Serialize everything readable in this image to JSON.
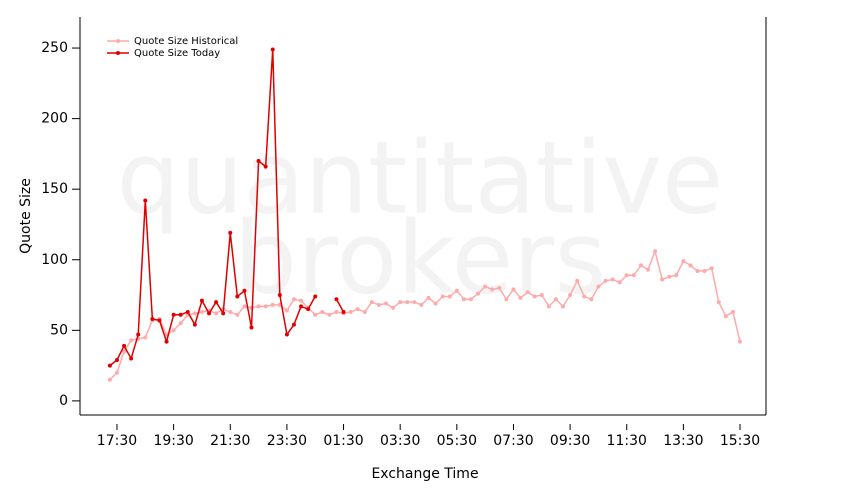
{
  "chart_data": {
    "type": "line",
    "watermark": [
      "quantitative",
      "brokers"
    ],
    "x_label": "Exchange Time",
    "y_label": "Quote Size",
    "categories": [
      null,
      "17:30",
      null,
      null,
      null,
      null,
      null,
      null,
      null,
      "19:30",
      null,
      null,
      null,
      null,
      null,
      null,
      null,
      "21:30",
      null,
      null,
      null,
      null,
      null,
      null,
      null,
      "23:30",
      null,
      null,
      null,
      null,
      null,
      null,
      null,
      "01:30",
      null,
      null,
      null,
      null,
      null,
      null,
      null,
      "03:30",
      null,
      null,
      null,
      null,
      null,
      null,
      null,
      "05:30",
      null,
      null,
      null,
      null,
      null,
      null,
      null,
      "07:30",
      null,
      null,
      null,
      null,
      null,
      null,
      null,
      "09:30",
      null,
      null,
      null,
      null,
      null,
      null,
      null,
      "11:30",
      null,
      null,
      null,
      null,
      null,
      null,
      null,
      "13:30",
      null,
      null,
      null,
      null,
      null,
      null,
      null,
      "15:30"
    ],
    "series": [
      {
        "name": "Quote Size Historical",
        "color": "#ffaaaa",
        "values": [
          15,
          20,
          35,
          43,
          44,
          45,
          57,
          58,
          47,
          50,
          55,
          61,
          62,
          63,
          64,
          62,
          65,
          63,
          61,
          67,
          66,
          67,
          67,
          68,
          68,
          64,
          72,
          71,
          66,
          61,
          63,
          61,
          63,
          62,
          63,
          65,
          63,
          70,
          68,
          69,
          66,
          70,
          70,
          70,
          68,
          73,
          69,
          74,
          74,
          78,
          72,
          72,
          76,
          81,
          79,
          80,
          72,
          79,
          73,
          77,
          74,
          75,
          67,
          72,
          67,
          75,
          85,
          74,
          72,
          81,
          85,
          86,
          84,
          89,
          89,
          96,
          93,
          106,
          86,
          88,
          89,
          99,
          96,
          92,
          92,
          94,
          70,
          60,
          63,
          42
        ]
      },
      {
        "name": "Quote Size Today",
        "color": "#e00000",
        "values": [
          25,
          29,
          39,
          30,
          47,
          142,
          58,
          57,
          42,
          61,
          61,
          63,
          54,
          71,
          62,
          70,
          62,
          119,
          74,
          78,
          52,
          170,
          166,
          249,
          75,
          47,
          54,
          67,
          65,
          74,
          null,
          null,
          72,
          63,
          null,
          null,
          null,
          null,
          null,
          null,
          null,
          null,
          null,
          null,
          null,
          null,
          null,
          null,
          null,
          null,
          null,
          null,
          null,
          null,
          null,
          null,
          null,
          null,
          null,
          null,
          null,
          null,
          null,
          null,
          null,
          null,
          null,
          null,
          null,
          null,
          null,
          null,
          null,
          null,
          null,
          null,
          null,
          null,
          null,
          null,
          null,
          null,
          null,
          null,
          null,
          null,
          null,
          null,
          null,
          null
        ]
      }
    ],
    "ylim": [
      -10,
      272
    ],
    "yticks": [
      0,
      50,
      100,
      150,
      200,
      250
    ],
    "legend": "top-left"
  }
}
